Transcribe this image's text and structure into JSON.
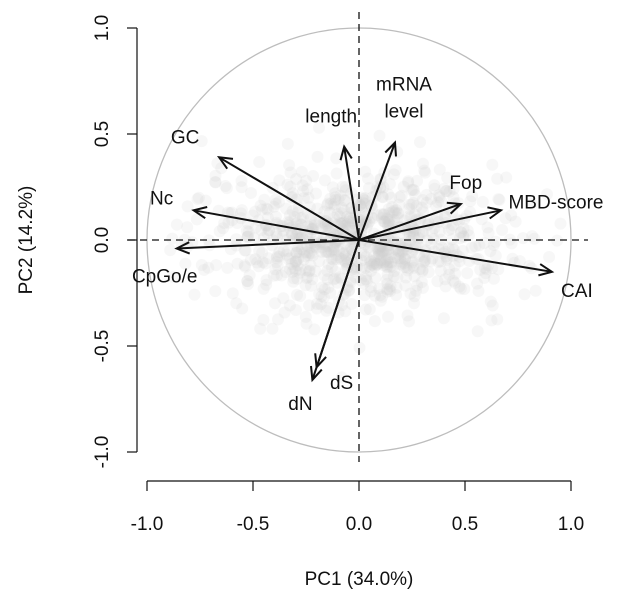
{
  "chart_data": {
    "type": "biplot",
    "title": "",
    "xlabel": "PC1 (34.0%)",
    "ylabel": "PC2 (14.2%)",
    "xlim": [
      -1.0,
      1.0
    ],
    "ylim": [
      -1.0,
      1.0
    ],
    "x_ticks": [
      -1.0,
      -0.5,
      0.0,
      0.5,
      1.0
    ],
    "y_ticks": [
      -1.0,
      -0.5,
      0.0,
      0.5,
      1.0
    ],
    "x_tick_labels": [
      "-1.0",
      "-0.5",
      "0.0",
      "0.5",
      "1.0"
    ],
    "y_tick_labels": [
      "-1.0",
      "-0.5",
      "0.0",
      "0.5",
      "1.0"
    ],
    "unit_circle": true,
    "reference_lines": "dashed at x=0 and y=0",
    "background_points": "light gray cloud of gene observations",
    "colors": {
      "arrows": "#111111",
      "circle": "#bdbdbd",
      "points": "#cfcfcf"
    },
    "vectors": [
      {
        "label": "GC",
        "x": -0.66,
        "y": 0.39
      },
      {
        "label": "Nc",
        "x": -0.78,
        "y": 0.14
      },
      {
        "label": "CpGo/e",
        "x": -0.86,
        "y": -0.04
      },
      {
        "label": "length",
        "x": -0.07,
        "y": 0.44
      },
      {
        "label": "mRNA\nlevel",
        "x": 0.17,
        "y": 0.46
      },
      {
        "label": "Fop",
        "x": 0.48,
        "y": 0.17
      },
      {
        "label": "MBD-score",
        "x": 0.67,
        "y": 0.14
      },
      {
        "label": "CAI",
        "x": 0.91,
        "y": -0.15
      },
      {
        "label": "dN",
        "x": -0.22,
        "y": -0.66
      },
      {
        "label": "dS",
        "x": -0.2,
        "y": -0.6
      }
    ]
  }
}
